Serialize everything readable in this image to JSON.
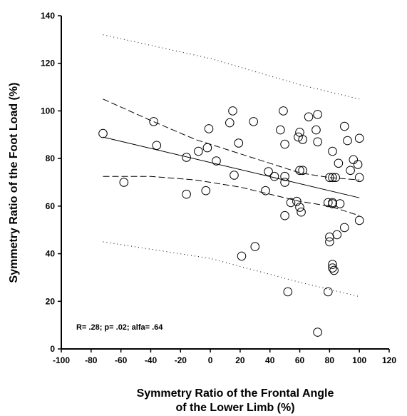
{
  "chart_data": {
    "type": "scatter",
    "xlabel": "Symmetry Ratio of the Frontal Angle",
    "xlabel_line2": "of the Lower Limb (%)",
    "ylabel": "Symmetry Ratio of the Foot Load (%)",
    "xlim": [
      -100,
      120
    ],
    "ylim": [
      0,
      140
    ],
    "x_ticks": [
      -100,
      -80,
      -60,
      -40,
      -20,
      0,
      20,
      40,
      60,
      80,
      100,
      120
    ],
    "y_ticks": [
      0,
      20,
      40,
      60,
      80,
      100,
      120,
      140
    ],
    "annotation": "R= .28; p= .02; alfa= .64",
    "points": [
      [
        -72,
        90.5
      ],
      [
        -58,
        70
      ],
      [
        -38,
        95.5
      ],
      [
        -36,
        85.5
      ],
      [
        -16,
        80.5
      ],
      [
        -16,
        65
      ],
      [
        -8,
        83
      ],
      [
        -3,
        66.5
      ],
      [
        -2,
        84.5
      ],
      [
        -1,
        92.5
      ],
      [
        4,
        79
      ],
      [
        13,
        95
      ],
      [
        15,
        100
      ],
      [
        16,
        73
      ],
      [
        19,
        86.5
      ],
      [
        21,
        39
      ],
      [
        29,
        95.5
      ],
      [
        30,
        43
      ],
      [
        37,
        66.5
      ],
      [
        39,
        74.5
      ],
      [
        43,
        72.5
      ],
      [
        47,
        92
      ],
      [
        49,
        100
      ],
      [
        50,
        86
      ],
      [
        50,
        72.5
      ],
      [
        50,
        70
      ],
      [
        50,
        56
      ],
      [
        52,
        24
      ],
      [
        54,
        61.5
      ],
      [
        58,
        62
      ],
      [
        59,
        89
      ],
      [
        60,
        91
      ],
      [
        60,
        75
      ],
      [
        60,
        59.5
      ],
      [
        61,
        57.5
      ],
      [
        62,
        75
      ],
      [
        62,
        88
      ],
      [
        66,
        97.5
      ],
      [
        71,
        92
      ],
      [
        72,
        87
      ],
      [
        72,
        98.5
      ],
      [
        72,
        7
      ],
      [
        79,
        61.5
      ],
      [
        79,
        24
      ],
      [
        80,
        72
      ],
      [
        80,
        47
      ],
      [
        80,
        45
      ],
      [
        82,
        83
      ],
      [
        82,
        72
      ],
      [
        82,
        61.5
      ],
      [
        82,
        61
      ],
      [
        82,
        35.5
      ],
      [
        82,
        34
      ],
      [
        83,
        33
      ],
      [
        84,
        72
      ],
      [
        85,
        48
      ],
      [
        86,
        78
      ],
      [
        87,
        61
      ],
      [
        90,
        51
      ],
      [
        90,
        93.5
      ],
      [
        92,
        87.5
      ],
      [
        94,
        75
      ],
      [
        96,
        79.5
      ],
      [
        99,
        77.5
      ],
      [
        100,
        88.5
      ],
      [
        100,
        72
      ],
      [
        100,
        54
      ]
    ],
    "regression_line": [
      [
        -72,
        89
      ],
      [
        100,
        63.5
      ]
    ],
    "confidence_upper": [
      [
        -72,
        105
      ],
      [
        -40,
        96
      ],
      [
        -10,
        88
      ],
      [
        20,
        82
      ],
      [
        40,
        78
      ],
      [
        60,
        74
      ],
      [
        80,
        72
      ],
      [
        100,
        71
      ]
    ],
    "confidence_lower": [
      [
        -72,
        72.5
      ],
      [
        -40,
        72.5
      ],
      [
        -10,
        71
      ],
      [
        20,
        68
      ],
      [
        40,
        65
      ],
      [
        60,
        62
      ],
      [
        80,
        60
      ],
      [
        100,
        56
      ]
    ],
    "prediction_upper": [
      [
        -72,
        132
      ],
      [
        0,
        122
      ],
      [
        60,
        111
      ],
      [
        100,
        105
      ]
    ],
    "prediction_lower": [
      [
        -72,
        45
      ],
      [
        0,
        38
      ],
      [
        60,
        28
      ],
      [
        100,
        22
      ]
    ]
  }
}
